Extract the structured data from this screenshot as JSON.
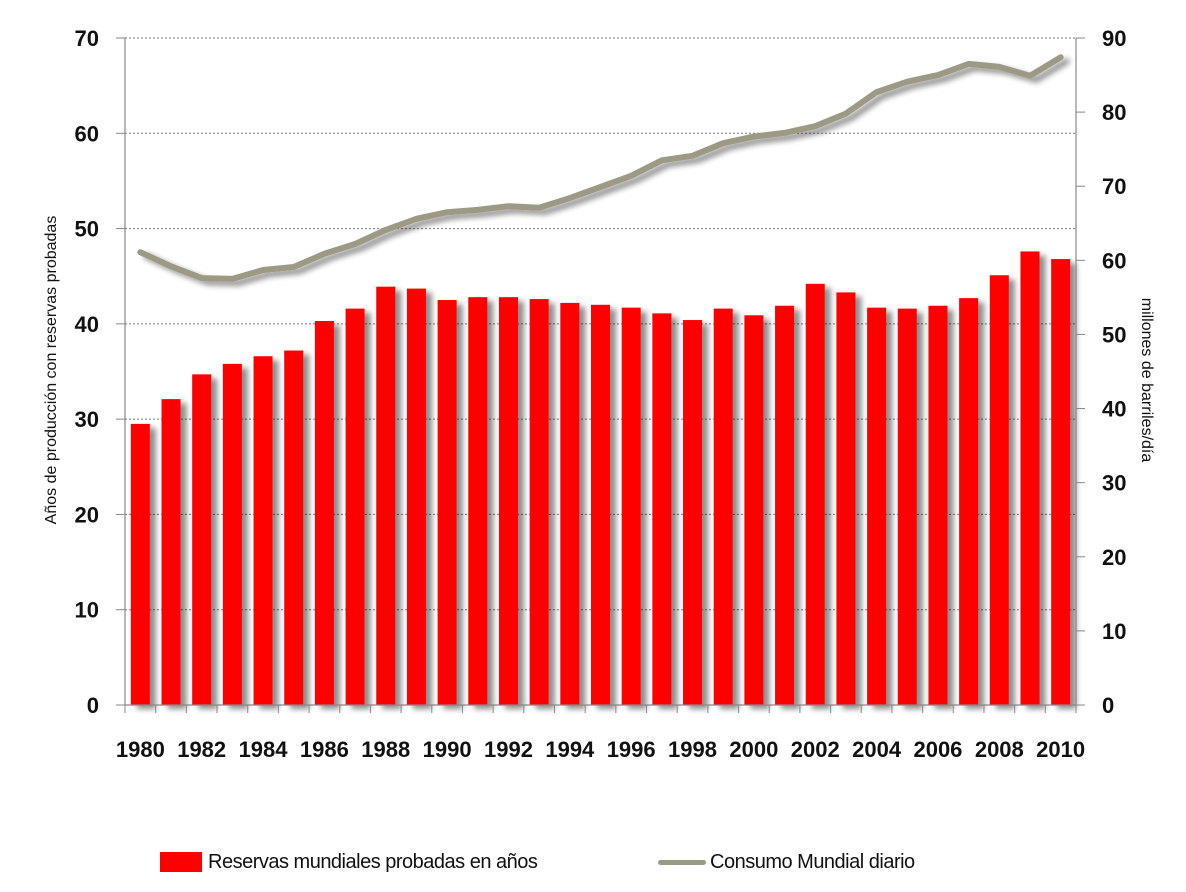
{
  "chart_data": {
    "type": "bar+line",
    "categories": [
      "1980",
      "1981",
      "1982",
      "1983",
      "1984",
      "1985",
      "1986",
      "1987",
      "1988",
      "1989",
      "1990",
      "1991",
      "1992",
      "1993",
      "1994",
      "1995",
      "1996",
      "1997",
      "1998",
      "1999",
      "2000",
      "2001",
      "2002",
      "2003",
      "2004",
      "2005",
      "2006",
      "2007",
      "2008",
      "2009",
      "2010"
    ],
    "x_tick_labels": [
      "1980",
      "1982",
      "1984",
      "1986",
      "1988",
      "1990",
      "1992",
      "1994",
      "1996",
      "1998",
      "2000",
      "2002",
      "2004",
      "2006",
      "2008",
      "2010"
    ],
    "series": [
      {
        "name": "Reservas mundiales probadas en años",
        "type": "bar",
        "axis": "left",
        "color": "#ff0000",
        "values": [
          29.5,
          32.1,
          34.7,
          35.8,
          36.6,
          37.2,
          40.3,
          41.6,
          43.9,
          43.7,
          42.5,
          42.8,
          42.8,
          42.6,
          42.2,
          42.0,
          41.7,
          41.1,
          40.4,
          41.6,
          40.9,
          41.9,
          44.2,
          43.3,
          41.7,
          41.6,
          41.9,
          42.7,
          45.1,
          47.6,
          46.8
        ]
      },
      {
        "name": "Consumo Mundial diario",
        "type": "line",
        "axis": "right",
        "color": "#9c9a84",
        "values": [
          61.1,
          59.2,
          57.6,
          57.5,
          58.7,
          59.1,
          60.9,
          62.2,
          64.1,
          65.6,
          66.5,
          66.8,
          67.3,
          67.1,
          68.4,
          69.9,
          71.4,
          73.5,
          74.1,
          75.8,
          76.7,
          77.2,
          78.1,
          79.8,
          82.7,
          84.1,
          85.0,
          86.5,
          86.1,
          84.9,
          87.4
        ]
      }
    ],
    "ylabel": "Años de producción con  reservas probadas",
    "y2label": "millones de barriles/día",
    "ylim": [
      0,
      70
    ],
    "y2lim": [
      0,
      90
    ],
    "y_ticks": [
      "0",
      "10",
      "20",
      "30",
      "40",
      "50",
      "60",
      "70"
    ],
    "y2_ticks": [
      "0",
      "10",
      "20",
      "30",
      "40",
      "50",
      "60",
      "70",
      "80",
      "90"
    ],
    "grid": true,
    "legend_position": "bottom"
  }
}
